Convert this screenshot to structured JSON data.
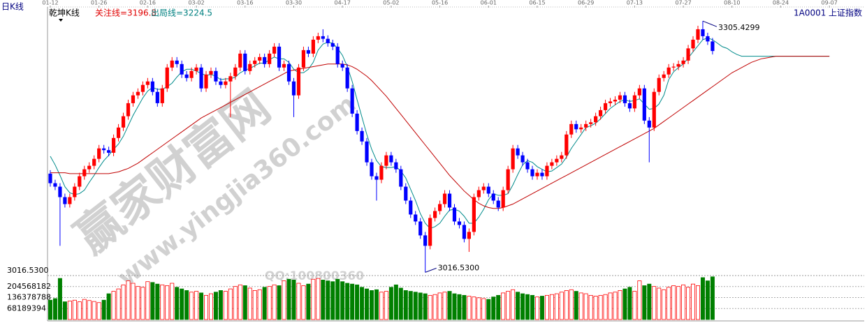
{
  "chart_data": {
    "type": "candlestick",
    "title": "日K线",
    "indicator": "乾坤K线",
    "focus_line": "关注线=3196.8",
    "exit_line": "出局线=3224.5",
    "code": "1A0001",
    "name": "上证指数",
    "price_floor_label": "3016.5300",
    "annotations": [
      "3305.4299",
      "3016.5300"
    ],
    "watermark": [
      "赢家财富网",
      "www.yingjia360.com",
      "QQ:100800360"
    ],
    "up_color": "#ff0000",
    "down_color": "#0000ff",
    "volume_up_color": "#ff0000",
    "volume_down_color": "#008000",
    "ylim": [
      3012,
      3316
    ],
    "vylim": [
      0,
      272757576
    ],
    "vyticks": [
      68189394,
      136378788,
      204568182
    ],
    "categories": [
      "01-12",
      null,
      null,
      null,
      null,
      null,
      null,
      null,
      null,
      null,
      "01-26",
      null,
      null,
      null,
      null,
      null,
      null,
      null,
      null,
      null,
      "02-16",
      null,
      null,
      null,
      null,
      null,
      null,
      null,
      null,
      null,
      "03-02",
      null,
      null,
      null,
      null,
      null,
      null,
      null,
      null,
      null,
      "03-16",
      null,
      null,
      null,
      null,
      null,
      null,
      null,
      null,
      null,
      "03-30",
      null,
      null,
      null,
      null,
      null,
      null,
      null,
      null,
      null,
      "04-17",
      null,
      null,
      null,
      null,
      null,
      null,
      null,
      null,
      null,
      "05-02",
      null,
      null,
      null,
      null,
      null,
      null,
      null,
      null,
      null,
      "05-16",
      null,
      null,
      null,
      null,
      null,
      null,
      null,
      null,
      null,
      "06-01",
      null,
      null,
      null,
      null,
      null,
      null,
      null,
      null,
      null,
      "06-15",
      null,
      null,
      null,
      null,
      null,
      null,
      null,
      null,
      null,
      "06-29",
      null,
      null,
      null,
      null,
      null,
      null,
      null,
      null,
      null,
      "07-13",
      null,
      null,
      null,
      null,
      null,
      null,
      null,
      null,
      null,
      "07-27",
      null,
      null,
      null,
      null,
      null,
      null,
      null,
      null,
      null,
      "08-10",
      null,
      null,
      null,
      null,
      null,
      null,
      null,
      null,
      null,
      "08-24",
      null,
      null,
      null,
      null,
      null,
      null,
      null,
      null,
      null,
      "09-07"
    ],
    "open": [
      3130,
      3119,
      3115,
      3103,
      3095,
      3103,
      3115,
      3127,
      3135,
      3139,
      3147,
      3159,
      3157,
      3154,
      3171,
      3183,
      3196,
      3211,
      3220,
      3224,
      3232,
      3236,
      3224,
      3211,
      3228,
      3252,
      3260,
      3256,
      3244,
      3240,
      3248,
      3252,
      3228,
      3244,
      3248,
      3236,
      3232,
      3236,
      3242,
      3252,
      3268,
      3248,
      3256,
      3260,
      3264,
      3256,
      3268,
      3276,
      3252,
      3256,
      3236,
      3220,
      3252,
      3272,
      3268,
      3284,
      3288,
      3285,
      3280,
      3276,
      3256,
      3252,
      3228,
      3199,
      3179,
      3167,
      3143,
      3127,
      3123,
      3139,
      3151,
      3143,
      3135,
      3115,
      3099,
      3083,
      3075,
      3059,
      3047,
      3079,
      3087,
      3095,
      3107,
      3091,
      3075,
      3071,
      3055,
      3063,
      3103,
      3111,
      3115,
      3107,
      3099,
      3091,
      3111,
      3135,
      3159,
      3151,
      3143,
      3135,
      3127,
      3131,
      3127,
      3139,
      3143,
      3147,
      3151,
      3175,
      3187,
      3181,
      3183,
      3187,
      3189,
      3196,
      3203,
      3211,
      3213,
      3215,
      3220,
      3211,
      3205,
      3220,
      3228,
      3191,
      3183,
      3224,
      3240,
      3244,
      3252,
      3253,
      3256,
      3260,
      3274,
      3284,
      3296,
      3288,
      3282,
      null,
      null,
      null,
      null,
      null,
      null,
      null,
      null,
      null,
      null,
      null,
      null,
      null,
      null,
      null,
      null,
      null,
      null,
      null,
      null,
      null,
      null,
      null,
      null
    ],
    "high": [
      3134,
      3123,
      3119,
      3107,
      3107,
      3119,
      3131,
      3139,
      3143,
      3151,
      3163,
      3163,
      3161,
      3175,
      3187,
      3200,
      3215,
      3224,
      3228,
      3236,
      3240,
      3240,
      3228,
      3232,
      3256,
      3264,
      3264,
      3260,
      3248,
      3252,
      3256,
      3256,
      3248,
      3252,
      3252,
      3240,
      3240,
      3246,
      3256,
      3272,
      3272,
      3260,
      3264,
      3268,
      3268,
      3272,
      3280,
      3280,
      3260,
      3260,
      3240,
      3256,
      3276,
      3276,
      3288,
      3292,
      3296,
      3289,
      3284,
      3280,
      3260,
      3256,
      3232,
      3203,
      3183,
      3171,
      3147,
      3131,
      3143,
      3155,
      3155,
      3147,
      3139,
      3119,
      3103,
      3087,
      3079,
      3063,
      3083,
      3091,
      3099,
      3111,
      3111,
      3095,
      3079,
      3075,
      3067,
      3107,
      3115,
      3119,
      3119,
      3111,
      3103,
      3115,
      3139,
      3163,
      3163,
      3155,
      3147,
      3139,
      3135,
      3135,
      3143,
      3147,
      3151,
      3155,
      3179,
      3191,
      3191,
      3187,
      3191,
      3193,
      3200,
      3207,
      3215,
      3217,
      3219,
      3224,
      3224,
      3215,
      3224,
      3232,
      3232,
      3195,
      3228,
      3244,
      3248,
      3256,
      3257,
      3260,
      3264,
      3278,
      3288,
      3300,
      3305.43,
      3292,
      3286,
      null,
      null,
      null,
      null,
      null,
      null,
      null,
      null,
      null,
      null,
      null,
      null,
      null,
      null,
      null,
      null,
      null,
      null,
      null,
      null,
      null,
      null,
      null,
      null
    ],
    "low": [
      3115,
      3111,
      3047,
      3091,
      3091,
      3099,
      3111,
      3123,
      3131,
      3135,
      3143,
      3153,
      3150,
      3150,
      3167,
      3179,
      3192,
      3207,
      3216,
      3220,
      3228,
      3220,
      3207,
      3207,
      3224,
      3248,
      3252,
      3240,
      3236,
      3236,
      3244,
      3224,
      3224,
      3240,
      3232,
      3228,
      3228,
      3195,
      3238,
      3248,
      3244,
      3244,
      3252,
      3256,
      3252,
      3252,
      3264,
      3248,
      3248,
      3232,
      3195,
      3216,
      3248,
      3264,
      3264,
      3280,
      3281,
      3276,
      3272,
      3252,
      3248,
      3224,
      3195,
      3175,
      3163,
      3139,
      3123,
      3099,
      3119,
      3135,
      3139,
      3131,
      3111,
      3095,
      3079,
      3071,
      3055,
      3016.53,
      3043,
      3075,
      3083,
      3091,
      3087,
      3071,
      3067,
      3051,
      3040,
      3059,
      3099,
      3107,
      3103,
      3095,
      3087,
      3087,
      3107,
      3131,
      3147,
      3139,
      3131,
      3123,
      3123,
      3123,
      3123,
      3135,
      3139,
      3143,
      3147,
      3171,
      3177,
      3177,
      3179,
      3183,
      3185,
      3192,
      3199,
      3207,
      3209,
      3211,
      3207,
      3201,
      3201,
      3216,
      3187,
      3143,
      3179,
      3220,
      3236,
      3240,
      3248,
      3249,
      3252,
      3256,
      3270,
      3280,
      3284,
      3278,
      3267,
      null,
      null,
      null,
      null,
      null,
      null,
      null,
      null,
      null,
      null,
      null,
      null,
      null,
      null,
      null,
      null,
      null,
      null,
      null,
      null,
      null,
      null,
      null,
      null
    ],
    "close": [
      3119,
      3115,
      3103,
      3095,
      3103,
      3115,
      3127,
      3135,
      3139,
      3147,
      3159,
      3157,
      3154,
      3171,
      3183,
      3196,
      3211,
      3220,
      3224,
      3232,
      3236,
      3224,
      3211,
      3228,
      3252,
      3260,
      3256,
      3244,
      3240,
      3248,
      3252,
      3228,
      3244,
      3248,
      3236,
      3232,
      3236,
      3242,
      3252,
      3268,
      3248,
      3256,
      3260,
      3264,
      3256,
      3268,
      3276,
      3252,
      3256,
      3236,
      3220,
      3252,
      3272,
      3268,
      3284,
      3288,
      3285,
      3280,
      3276,
      3256,
      3252,
      3228,
      3199,
      3179,
      3167,
      3143,
      3127,
      3123,
      3139,
      3151,
      3143,
      3135,
      3115,
      3099,
      3083,
      3075,
      3059,
      3047,
      3079,
      3087,
      3095,
      3107,
      3091,
      3075,
      3071,
      3055,
      3063,
      3103,
      3111,
      3115,
      3107,
      3099,
      3091,
      3111,
      3135,
      3159,
      3151,
      3143,
      3135,
      3127,
      3131,
      3127,
      3139,
      3143,
      3147,
      3151,
      3175,
      3187,
      3181,
      3183,
      3187,
      3189,
      3196,
      3203,
      3211,
      3213,
      3215,
      3220,
      3211,
      3205,
      3220,
      3228,
      3191,
      3183,
      3224,
      3240,
      3244,
      3252,
      3253,
      3256,
      3260,
      3274,
      3284,
      3296,
      3288,
      3282,
      3271,
      null,
      null,
      null,
      null,
      null,
      null,
      null,
      null,
      null,
      null,
      null,
      null,
      null,
      null,
      null,
      null,
      null,
      null,
      null,
      null,
      null,
      null,
      null,
      null
    ],
    "volume": [
      120000000,
      130000000,
      255000000,
      110000000,
      115000000,
      120000000,
      110000000,
      125000000,
      118000000,
      112000000,
      105000000,
      120000000,
      160000000,
      175000000,
      190000000,
      215000000,
      240000000,
      225000000,
      205000000,
      200000000,
      235000000,
      230000000,
      220000000,
      215000000,
      210000000,
      225000000,
      200000000,
      190000000,
      180000000,
      170000000,
      175000000,
      165000000,
      150000000,
      160000000,
      170000000,
      180000000,
      175000000,
      190000000,
      205000000,
      215000000,
      210000000,
      195000000,
      180000000,
      185000000,
      200000000,
      205000000,
      215000000,
      210000000,
      240000000,
      250000000,
      245000000,
      225000000,
      210000000,
      220000000,
      250000000,
      255000000,
      245000000,
      240000000,
      235000000,
      250000000,
      235000000,
      225000000,
      220000000,
      215000000,
      200000000,
      190000000,
      180000000,
      185000000,
      170000000,
      175000000,
      200000000,
      215000000,
      195000000,
      180000000,
      175000000,
      170000000,
      165000000,
      160000000,
      150000000,
      155000000,
      165000000,
      170000000,
      175000000,
      160000000,
      155000000,
      150000000,
      145000000,
      140000000,
      135000000,
      130000000,
      125000000,
      140000000,
      150000000,
      165000000,
      175000000,
      185000000,
      170000000,
      160000000,
      155000000,
      150000000,
      140000000,
      145000000,
      150000000,
      155000000,
      160000000,
      170000000,
      180000000,
      185000000,
      175000000,
      165000000,
      160000000,
      150000000,
      145000000,
      150000000,
      155000000,
      165000000,
      170000000,
      180000000,
      190000000,
      200000000,
      175000000,
      240000000,
      210000000,
      220000000,
      205000000,
      195000000,
      185000000,
      200000000,
      210000000,
      205000000,
      215000000,
      200000000,
      220000000,
      210000000,
      260000000,
      240000000,
      265000000,
      null,
      null,
      null,
      null,
      null,
      null,
      null,
      null,
      null,
      null,
      null,
      null,
      null,
      null,
      null,
      null,
      null,
      null,
      null,
      null,
      null,
      null,
      null,
      null
    ],
    "lines": [
      {
        "color": "#008b8b",
        "values": [
          3150,
          3140,
          3128,
          3115,
          3108,
          3106,
          3107,
          3111,
          3120,
          3128,
          3137,
          3145,
          3151,
          3158,
          3164,
          3173,
          3185,
          3197,
          3207,
          3217,
          3225,
          3229,
          3227,
          3227,
          3230,
          3234,
          3241,
          3247,
          3250,
          3250,
          3248,
          3245,
          3243,
          3244,
          3242,
          3238,
          3239,
          3239,
          3241,
          3246,
          3249,
          3251,
          3254,
          3257,
          3257,
          3261,
          3264,
          3262,
          3262,
          3258,
          3250,
          3246,
          3246,
          3250,
          3258,
          3272,
          3279,
          3281,
          3280,
          3274,
          3266,
          3253,
          3236,
          3215,
          3195,
          3175,
          3158,
          3145,
          3138,
          3137,
          3137,
          3138,
          3133,
          3125,
          3112,
          3099,
          3084,
          3073,
          3067,
          3069,
          3073,
          3081,
          3088,
          3089,
          3087,
          3081,
          3073,
          3073,
          3080,
          3089,
          3100,
          3107,
          3105,
          3105,
          3107,
          3117,
          3129,
          3140,
          3145,
          3143,
          3138,
          3135,
          3132,
          3133,
          3137,
          3141,
          3149,
          3159,
          3167,
          3175,
          3183,
          3185,
          3188,
          3193,
          3199,
          3205,
          3209,
          3213,
          3215,
          3213,
          3214,
          3216,
          3210,
          3204,
          3205,
          3210,
          3220,
          3238,
          3247,
          3252,
          3256,
          3263,
          3270,
          3277,
          3284,
          3286,
          3284,
          3280,
          3276,
          3274,
          3270,
          3267,
          3265,
          3265,
          3265,
          3265,
          3265,
          3265,
          3265,
          3265,
          3265,
          3265,
          3265,
          3265,
          3265,
          3265,
          3265,
          3265,
          3265,
          3265,
          3265
        ]
      },
      {
        "color": "#c00000",
        "values": [
          3131,
          3131,
          3131,
          3131,
          3130,
          3130,
          3130,
          3130,
          3130,
          3130,
          3130,
          3130,
          3130,
          3131,
          3132,
          3134,
          3136,
          3139,
          3142,
          3146,
          3150,
          3154,
          3158,
          3162,
          3166,
          3170,
          3174,
          3178,
          3182,
          3186,
          3190,
          3194,
          3197,
          3200,
          3203,
          3206,
          3209,
          3212,
          3215,
          3218,
          3221,
          3224,
          3227,
          3230,
          3233,
          3236,
          3239,
          3242,
          3245,
          3248,
          3249,
          3250,
          3251,
          3252,
          3253,
          3254,
          3255,
          3256,
          3256,
          3256,
          3256,
          3255,
          3253,
          3250,
          3246,
          3242,
          3237,
          3231,
          3225,
          3219,
          3212,
          3205,
          3198,
          3191,
          3184,
          3177,
          3170,
          3163,
          3156,
          3149,
          3142,
          3135,
          3128,
          3122,
          3116,
          3110,
          3105,
          3100,
          3096,
          3093,
          3091,
          3090,
          3090,
          3091,
          3093,
          3095,
          3098,
          3101,
          3104,
          3107,
          3110,
          3113,
          3116,
          3119,
          3122,
          3125,
          3128,
          3131,
          3134,
          3137,
          3140,
          3143,
          3146,
          3149,
          3152,
          3155,
          3158,
          3161,
          3164,
          3167,
          3170,
          3173,
          3176,
          3179,
          3182,
          3186,
          3190,
          3194,
          3198,
          3202,
          3206,
          3210,
          3214,
          3218,
          3222,
          3226,
          3230,
          3234,
          3238,
          3242,
          3246,
          3249,
          3252,
          3255,
          3258,
          3260,
          3262,
          3263,
          3264,
          3265,
          3265,
          3265,
          3265,
          3265,
          3265,
          3265,
          3265,
          3265,
          3265,
          3265,
          3265
        ]
      }
    ]
  }
}
